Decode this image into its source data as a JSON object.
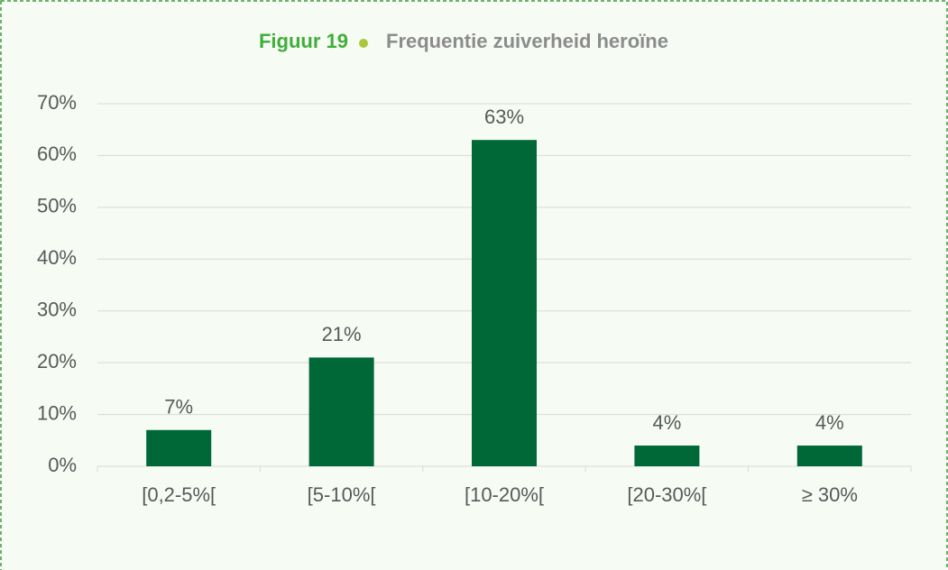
{
  "chart_data": {
    "type": "bar",
    "figure_label": "Figuur 19",
    "title": "Frequentie zuiverheid heroïne",
    "categories": [
      "[0,2-5%[",
      "[5-10%[",
      "[10-20%[",
      "[20-30%[",
      "≥ 30%"
    ],
    "values": [
      7,
      21,
      63,
      4,
      4
    ],
    "value_labels": [
      "7%",
      "21%",
      "63%",
      "4%",
      "4%"
    ],
    "color": "#006837",
    "ylim": [
      0,
      70
    ],
    "yticks": [
      {
        "value": 0,
        "label": "0%"
      },
      {
        "value": 10,
        "label": "10%"
      },
      {
        "value": 20,
        "label": "20%"
      },
      {
        "value": 30,
        "label": "30%"
      },
      {
        "value": 40,
        "label": "40%"
      },
      {
        "value": 50,
        "label": "50%"
      },
      {
        "value": 60,
        "label": "60%"
      },
      {
        "value": 70,
        "label": "70%"
      }
    ],
    "grid": true
  }
}
